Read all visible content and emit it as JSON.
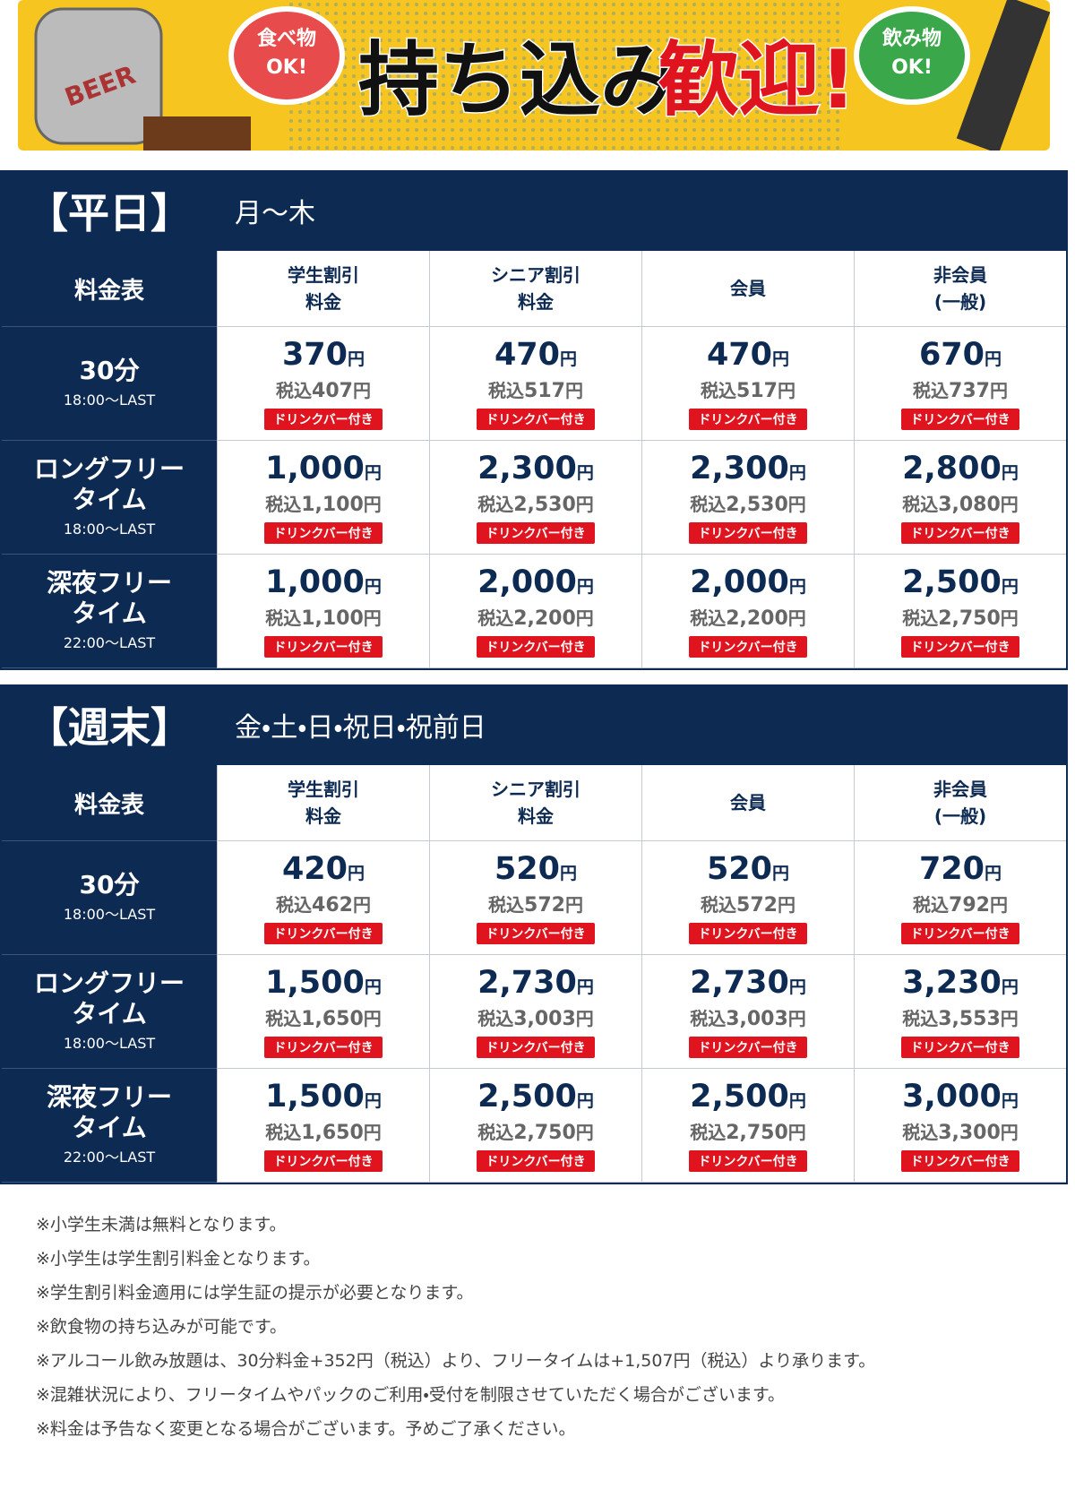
{
  "banner": {
    "can_label": "BEER",
    "food_bubble": [
      "食べ物",
      "OK!"
    ],
    "headline_black": "持ち込み",
    "headline_red": "歓迎!",
    "drink_bubble": [
      "飲み物",
      "OK!"
    ]
  },
  "sections": [
    {
      "title": "【平日】",
      "subtitle": "月～木",
      "corner": "料金表",
      "columns": [
        [
          "学生割引",
          "料金"
        ],
        [
          "シニア割引",
          "料金"
        ],
        [
          "会員"
        ],
        [
          "非会員",
          "(一般)"
        ]
      ],
      "rows": [
        {
          "label": [
            "30分"
          ],
          "time": "18:00～LAST",
          "cells": [
            {
              "price": "370",
              "unit": "円",
              "tax_prefix": "税込",
              "tax": "407",
              "tax_unit": "円",
              "badge": "ドリンクバー付き"
            },
            {
              "price": "470",
              "unit": "円",
              "tax_prefix": "税込",
              "tax": "517",
              "tax_unit": "円",
              "badge": "ドリンクバー付き"
            },
            {
              "price": "470",
              "unit": "円",
              "tax_prefix": "税込",
              "tax": "517",
              "tax_unit": "円",
              "badge": "ドリンクバー付き"
            },
            {
              "price": "670",
              "unit": "円",
              "tax_prefix": "税込",
              "tax": "737",
              "tax_unit": "円",
              "badge": "ドリンクバー付き"
            }
          ]
        },
        {
          "label": [
            "ロングフリー",
            "タイム"
          ],
          "time": "18:00～LAST",
          "cells": [
            {
              "price": "1,000",
              "unit": "円",
              "tax_prefix": "税込",
              "tax": "1,100",
              "tax_unit": "円",
              "badge": "ドリンクバー付き"
            },
            {
              "price": "2,300",
              "unit": "円",
              "tax_prefix": "税込",
              "tax": "2,530",
              "tax_unit": "円",
              "badge": "ドリンクバー付き"
            },
            {
              "price": "2,300",
              "unit": "円",
              "tax_prefix": "税込",
              "tax": "2,530",
              "tax_unit": "円",
              "badge": "ドリンクバー付き"
            },
            {
              "price": "2,800",
              "unit": "円",
              "tax_prefix": "税込",
              "tax": "3,080",
              "tax_unit": "円",
              "badge": "ドリンクバー付き"
            }
          ]
        },
        {
          "label": [
            "深夜フリー",
            "タイム"
          ],
          "time": "22:00～LAST",
          "cells": [
            {
              "price": "1,000",
              "unit": "円",
              "tax_prefix": "税込",
              "tax": "1,100",
              "tax_unit": "円",
              "badge": "ドリンクバー付き"
            },
            {
              "price": "2,000",
              "unit": "円",
              "tax_prefix": "税込",
              "tax": "2,200",
              "tax_unit": "円",
              "badge": "ドリンクバー付き"
            },
            {
              "price": "2,000",
              "unit": "円",
              "tax_prefix": "税込",
              "tax": "2,200",
              "tax_unit": "円",
              "badge": "ドリンクバー付き"
            },
            {
              "price": "2,500",
              "unit": "円",
              "tax_prefix": "税込",
              "tax": "2,750",
              "tax_unit": "円",
              "badge": "ドリンクバー付き"
            }
          ]
        }
      ]
    },
    {
      "title": "【週末】",
      "subtitle": "金・土・日・祝日・祝前日",
      "corner": "料金表",
      "columns": [
        [
          "学生割引",
          "料金"
        ],
        [
          "シニア割引",
          "料金"
        ],
        [
          "会員"
        ],
        [
          "非会員",
          "(一般)"
        ]
      ],
      "rows": [
        {
          "label": [
            "30分"
          ],
          "time": "18:00～LAST",
          "cells": [
            {
              "price": "420",
              "unit": "円",
              "tax_prefix": "税込",
              "tax": "462",
              "tax_unit": "円",
              "badge": "ドリンクバー付き"
            },
            {
              "price": "520",
              "unit": "円",
              "tax_prefix": "税込",
              "tax": "572",
              "tax_unit": "円",
              "badge": "ドリンクバー付き"
            },
            {
              "price": "520",
              "unit": "円",
              "tax_prefix": "税込",
              "tax": "572",
              "tax_unit": "円",
              "badge": "ドリンクバー付き"
            },
            {
              "price": "720",
              "unit": "円",
              "tax_prefix": "税込",
              "tax": "792",
              "tax_unit": "円",
              "badge": "ドリンクバー付き"
            }
          ]
        },
        {
          "label": [
            "ロングフリー",
            "タイム"
          ],
          "time": "18:00～LAST",
          "cells": [
            {
              "price": "1,500",
              "unit": "円",
              "tax_prefix": "税込",
              "tax": "1,650",
              "tax_unit": "円",
              "badge": "ドリンクバー付き"
            },
            {
              "price": "2,730",
              "unit": "円",
              "tax_prefix": "税込",
              "tax": "3,003",
              "tax_unit": "円",
              "badge": "ドリンクバー付き"
            },
            {
              "price": "2,730",
              "unit": "円",
              "tax_prefix": "税込",
              "tax": "3,003",
              "tax_unit": "円",
              "badge": "ドリンクバー付き"
            },
            {
              "price": "3,230",
              "unit": "円",
              "tax_prefix": "税込",
              "tax": "3,553",
              "tax_unit": "円",
              "badge": "ドリンクバー付き"
            }
          ]
        },
        {
          "label": [
            "深夜フリー",
            "タイム"
          ],
          "time": "22:00～LAST",
          "cells": [
            {
              "price": "1,500",
              "unit": "円",
              "tax_prefix": "税込",
              "tax": "1,650",
              "tax_unit": "円",
              "badge": "ドリンクバー付き"
            },
            {
              "price": "2,500",
              "unit": "円",
              "tax_prefix": "税込",
              "tax": "2,750",
              "tax_unit": "円",
              "badge": "ドリンクバー付き"
            },
            {
              "price": "2,500",
              "unit": "円",
              "tax_prefix": "税込",
              "tax": "2,750",
              "tax_unit": "円",
              "badge": "ドリンクバー付き"
            },
            {
              "price": "3,000",
              "unit": "円",
              "tax_prefix": "税込",
              "tax": "3,300",
              "tax_unit": "円",
              "badge": "ドリンクバー付き"
            }
          ]
        }
      ]
    }
  ],
  "notes": [
    "※小学生未満は無料となります。",
    "※小学生は学生割引料金となります。",
    "※学生割引料金適用には学生証の提示が必要となります。",
    "※飲食物の持ち込みが可能です。",
    "※アルコール飲み放題は、30分料金+352円（税込）より、フリータイムは+1,507円（税込）より承ります。",
    "※混雑状況により、フリータイムやパックのご利用・受付を制限させていただく場合がございます。",
    "※料金は予告なく変更となる場合がございます。予めご了承ください。"
  ]
}
